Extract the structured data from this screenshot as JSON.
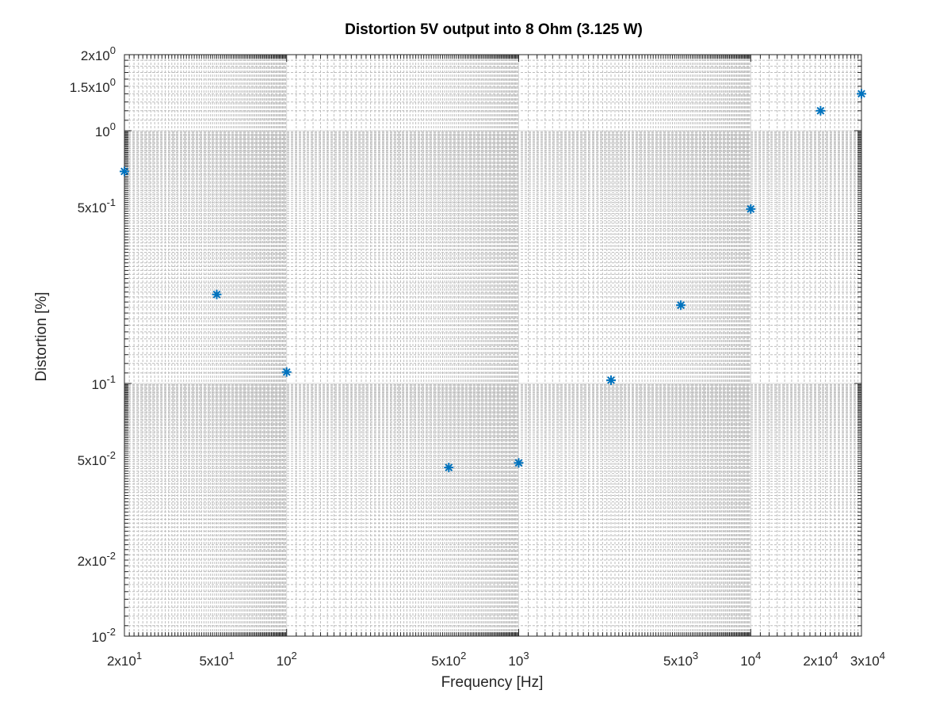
{
  "chart_data": {
    "type": "scatter",
    "title": "Distortion 5V output into 8 Ohm (3.125 W)",
    "xlabel": "Frequency [Hz]",
    "ylabel": "Distortion [%]",
    "xscale": "log",
    "yscale": "log",
    "xlim": [
      20,
      30000
    ],
    "ylim": [
      0.01,
      2
    ],
    "grid": true,
    "minor_grid": true,
    "marker": "asterisk",
    "marker_color": "#0072BD",
    "x_ticks": [
      {
        "value": 20,
        "mantissa": "2x10",
        "exp": "1"
      },
      {
        "value": 50,
        "mantissa": "5x10",
        "exp": "1"
      },
      {
        "value": 100,
        "mantissa": "10",
        "exp": "2"
      },
      {
        "value": 500,
        "mantissa": "5x10",
        "exp": "2"
      },
      {
        "value": 1000,
        "mantissa": "10",
        "exp": "3"
      },
      {
        "value": 5000,
        "mantissa": "5x10",
        "exp": "3"
      },
      {
        "value": 10000,
        "mantissa": "10",
        "exp": "4"
      },
      {
        "value": 20000,
        "mantissa": "2x10",
        "exp": "4"
      },
      {
        "value": 30000,
        "mantissa": "3x10",
        "exp": "4"
      }
    ],
    "y_ticks": [
      {
        "value": 0.01,
        "mantissa": "10",
        "exp": "-2"
      },
      {
        "value": 0.02,
        "mantissa": "2x10",
        "exp": "-2"
      },
      {
        "value": 0.05,
        "mantissa": "5x10",
        "exp": "-2"
      },
      {
        "value": 0.1,
        "mantissa": "10",
        "exp": "-1"
      },
      {
        "value": 0.5,
        "mantissa": "5x10",
        "exp": "-1"
      },
      {
        "value": 1,
        "mantissa": "10",
        "exp": "0"
      },
      {
        "value": 1.5,
        "mantissa": "1.5x10",
        "exp": "0"
      },
      {
        "value": 2,
        "mantissa": "2x10",
        "exp": "0"
      }
    ],
    "series": [
      {
        "points": [
          {
            "x": 20,
            "y": 0.69
          },
          {
            "x": 50,
            "y": 0.225
          },
          {
            "x": 100,
            "y": 0.111
          },
          {
            "x": 500,
            "y": 0.0465
          },
          {
            "x": 1000,
            "y": 0.0485
          },
          {
            "x": 2500,
            "y": 0.103
          },
          {
            "x": 5000,
            "y": 0.204
          },
          {
            "x": 10000,
            "y": 0.49
          },
          {
            "x": 20000,
            "y": 1.2
          },
          {
            "x": 30000,
            "y": 1.4
          }
        ]
      }
    ]
  }
}
